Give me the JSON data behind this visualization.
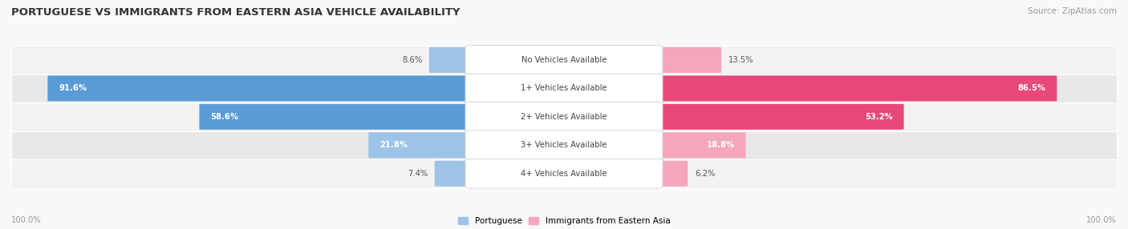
{
  "title": "PORTUGUESE VS IMMIGRANTS FROM EASTERN ASIA VEHICLE AVAILABILITY",
  "source": "Source: ZipAtlas.com",
  "categories": [
    "No Vehicles Available",
    "1+ Vehicles Available",
    "2+ Vehicles Available",
    "3+ Vehicles Available",
    "4+ Vehicles Available"
  ],
  "portuguese_values": [
    8.6,
    91.6,
    58.6,
    21.8,
    7.4
  ],
  "immigrant_values": [
    13.5,
    86.5,
    53.2,
    18.8,
    6.2
  ],
  "portuguese_color_dark": "#5b9bd5",
  "portuguese_color_light": "#9dc3e6",
  "immigrant_color_dark": "#e8487a",
  "immigrant_color_light": "#f4a7bc",
  "row_bg_even": "#f2f2f2",
  "row_bg_odd": "#e8e8e8",
  "label_text_color": "#444444",
  "title_color": "#333333",
  "axis_label_color": "#999999",
  "max_value": 100.0,
  "legend_portuguese": "Portuguese",
  "legend_immigrant": "Immigrants from Eastern Asia",
  "fig_bg": "#f8f8f8"
}
